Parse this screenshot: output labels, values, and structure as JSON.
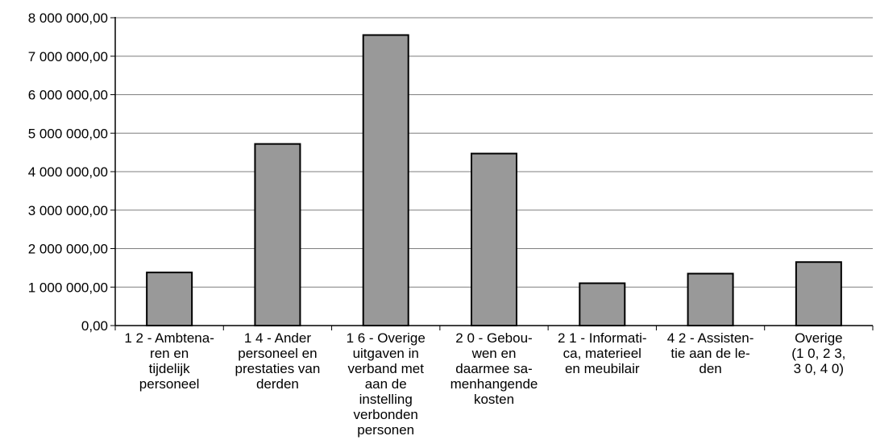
{
  "chart_data": {
    "type": "bar",
    "title": "",
    "xlabel": "",
    "ylabel": "",
    "ylim": [
      0,
      8000000
    ],
    "grid": true,
    "legend": "none",
    "y_ticks": [
      0,
      1000000,
      2000000,
      3000000,
      4000000,
      5000000,
      6000000,
      7000000,
      8000000
    ],
    "y_tick_labels": [
      "0,00",
      "1 000 000,00",
      "2 000 000,00",
      "3 000 000,00",
      "4 000 000,00",
      "5 000 000,00",
      "6 000 000,00",
      "7 000 000,00",
      "8 000 000,00"
    ],
    "categories": [
      "1 2 - Ambtena-\nren en\ntijdelijk\npersoneel",
      "1 4 - Ander\npersoneel en\nprestaties van\nderden",
      "1 6 - Overige\nuitgaven in\nverband met\naan de\ninstelling\nverbonden\npersonen",
      "2 0 - Gebou-\nwen en\ndaarmee sa-\nmenhangende\nkosten",
      "2 1 - Informati-\nca, materieel\nen meubilair",
      "4 2 - Assisten-\ntie aan de le-\nden",
      "Overige\n(1 0, 2 3,\n3 0, 4 0)"
    ],
    "values": [
      1380000,
      4720000,
      7550000,
      4470000,
      1100000,
      1350000,
      1650000
    ],
    "colors": {
      "bar": "#999999",
      "bar_edge": "#000000",
      "grid": "#7f7f7f",
      "axis": "#000000"
    }
  }
}
